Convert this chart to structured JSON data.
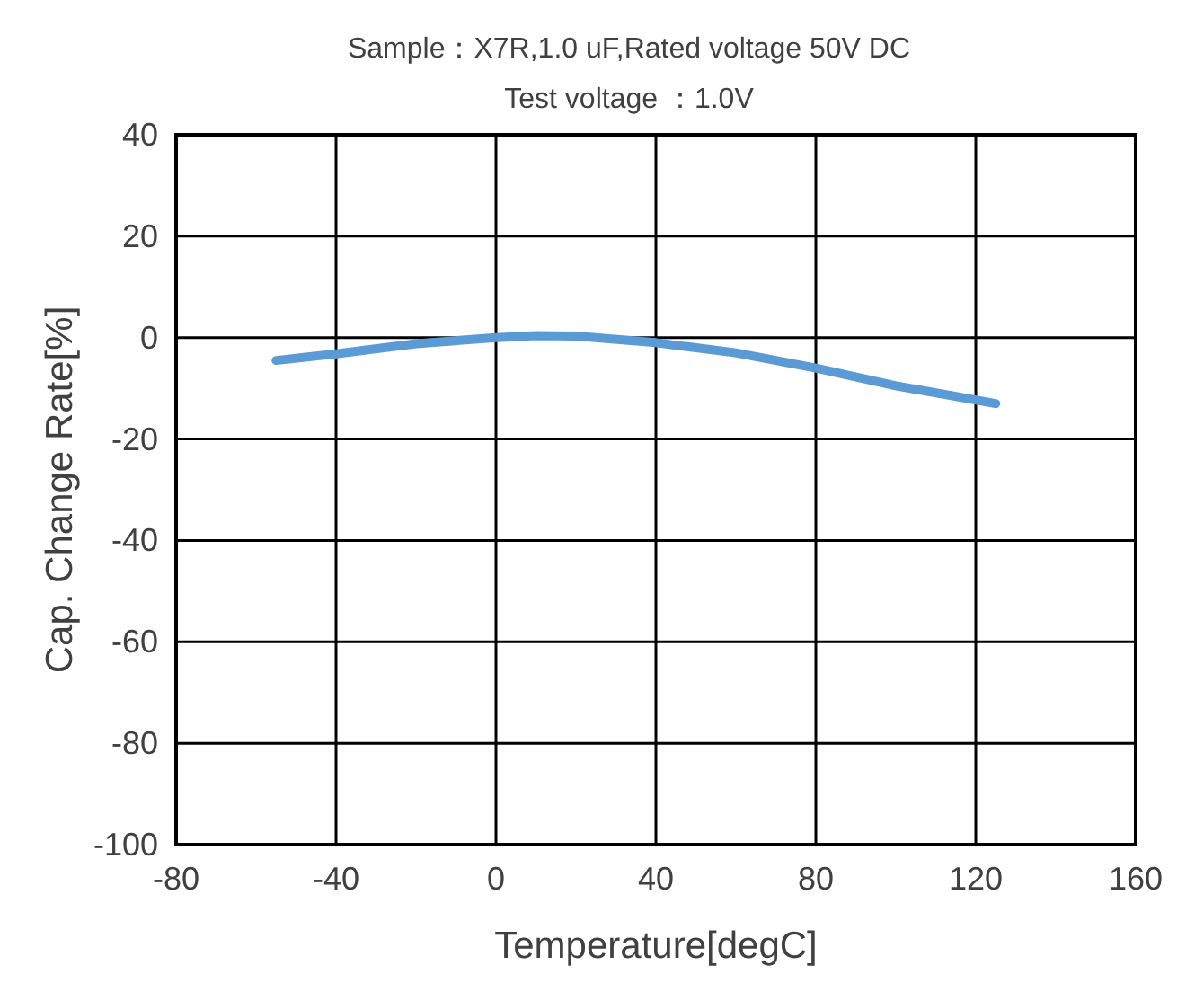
{
  "chart_data": {
    "type": "line",
    "title": "Sample：X7R,1.0 uF,Rated voltage 50V DC",
    "subtitle": "Test voltage ：1.0V",
    "xlabel": "Temperature[degC]",
    "ylabel": "Cap. Change Rate[%]",
    "x": [
      -55,
      -40,
      -20,
      0,
      10,
      20,
      40,
      60,
      80,
      100,
      125
    ],
    "series": [
      {
        "color": "#5b9bd5",
        "values": [
          -4.5,
          -3.2,
          -1.2,
          0,
          0.4,
          0.3,
          -1,
          -3,
          -6,
          -9.5,
          -13
        ]
      }
    ],
    "xlim": [
      -80,
      160
    ],
    "xticks": [
      -80,
      -40,
      0,
      40,
      80,
      120,
      160
    ],
    "ylim": [
      -100,
      40
    ],
    "yticks": [
      -100,
      -80,
      -60,
      -40,
      -20,
      0,
      20,
      40
    ],
    "grid": true,
    "marker": "none",
    "line_style": "solid"
  }
}
